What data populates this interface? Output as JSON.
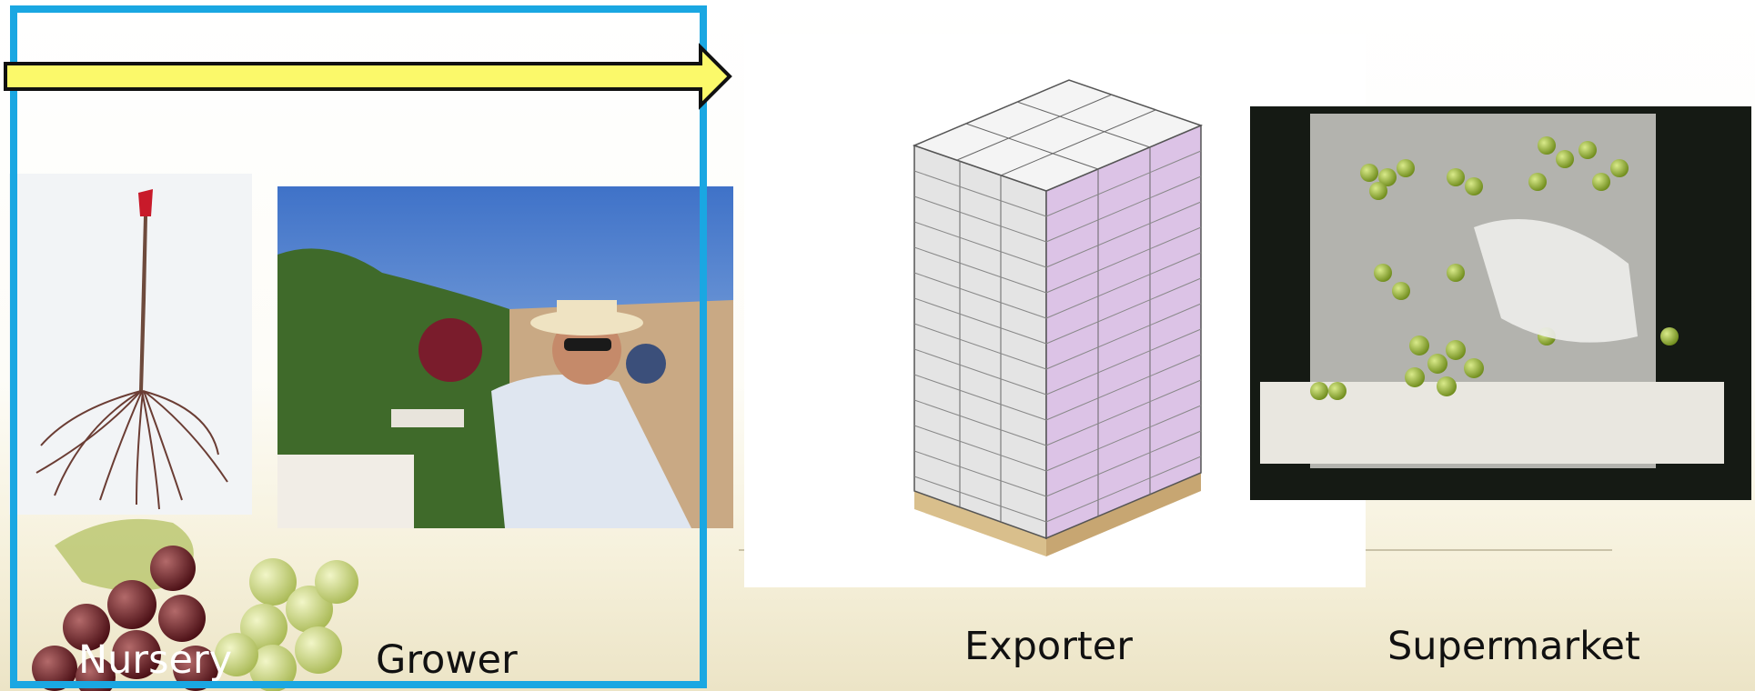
{
  "stages": [
    "Nursery",
    "Grower",
    "Exporter",
    "Supermarket"
  ]
}
